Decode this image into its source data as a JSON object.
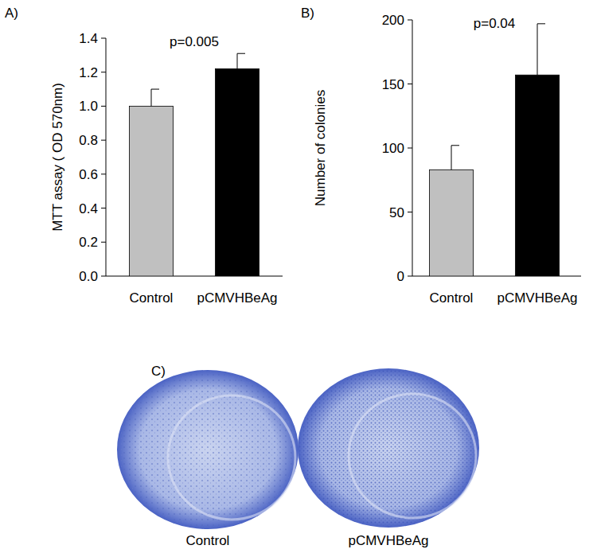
{
  "chart_data": [
    {
      "type": "bar",
      "title": "A)",
      "annotation": "p=0.005",
      "y_label": "MTT assay ( OD 570nm)",
      "categories": [
        "Control",
        "pCMVHBeAg"
      ],
      "values": [
        1.0,
        1.22
      ],
      "errors": [
        0.1,
        0.09
      ],
      "colors": [
        "#c0c0c0",
        "#000000"
      ],
      "ylim": [
        0,
        1.4
      ],
      "yticks": [
        {
          "value": 0,
          "label": "0.0"
        },
        {
          "value": 0.2,
          "label": "0.2"
        },
        {
          "value": 0.4,
          "label": "0.4"
        },
        {
          "value": 0.6,
          "label": "0.6"
        },
        {
          "value": 0.8,
          "label": "0.8"
        },
        {
          "value": 1,
          "label": "1.0"
        },
        {
          "value": 1.2,
          "label": "1.2"
        },
        {
          "value": 1.4,
          "label": "1.4"
        }
      ],
      "grid": false
    },
    {
      "type": "bar",
      "title": "B)",
      "annotation": "p=0.04",
      "y_label": "Number of colonies",
      "categories": [
        "Control",
        "pCMVHBeAg"
      ],
      "values": [
        83,
        157
      ],
      "errors": [
        19,
        40
      ],
      "colors": [
        "#c0c0c0",
        "#000000"
      ],
      "ylim": [
        0,
        200
      ],
      "yticks": [
        0,
        50,
        100,
        150,
        200
      ],
      "grid": false
    }
  ],
  "panel_c": {
    "label": "C)",
    "captions": [
      "Control",
      "pCMVHBeAg"
    ]
  }
}
